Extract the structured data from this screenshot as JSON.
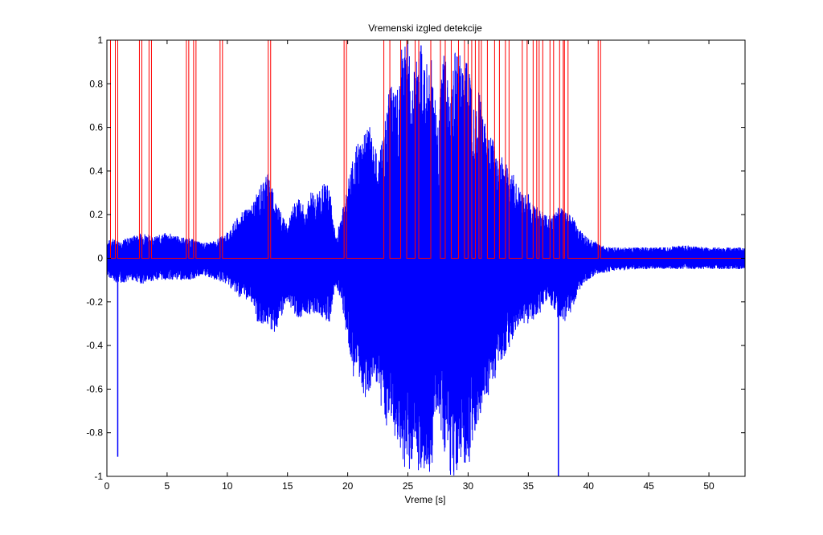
{
  "chart_data": {
    "type": "line",
    "title": "Vremenski izgled detekcije",
    "xlabel": "Vreme [s]",
    "ylabel": "",
    "xlim": [
      0,
      53
    ],
    "ylim": [
      -1,
      1
    ],
    "grid": false,
    "x_ticks": [
      0,
      5,
      10,
      15,
      20,
      25,
      30,
      35,
      40,
      45,
      50
    ],
    "x_tick_labels": [
      "0",
      "5",
      "10",
      "15",
      "20",
      "25",
      "30",
      "35",
      "40",
      "45",
      "50"
    ],
    "y_ticks": [
      -1,
      -0.8,
      -0.6,
      -0.4,
      -0.2,
      0,
      0.2,
      0.4,
      0.6,
      0.8,
      1
    ],
    "y_tick_labels": [
      "-1",
      "-0.8",
      "-0.6",
      "-0.4",
      "-0.2",
      "0",
      "0.2",
      "0.4",
      "0.6",
      "0.8",
      "1"
    ],
    "series": [
      {
        "color": "#0000ff",
        "envelope": {
          "x": [
            0,
            0.5,
            1,
            2,
            3,
            4,
            5,
            6,
            7,
            8,
            9,
            10,
            11,
            12,
            12.5,
            13,
            13.5,
            14,
            14.5,
            15,
            15.5,
            16,
            16.5,
            17,
            17.5,
            18,
            18.5,
            19,
            19.5,
            20,
            20.5,
            21,
            21.5,
            22,
            22.5,
            23,
            23.5,
            24,
            24.5,
            25,
            25.5,
            26,
            26.5,
            27,
            27.5,
            28,
            28.5,
            29,
            29.5,
            30,
            30.5,
            31,
            31.5,
            32,
            32.5,
            33,
            33.5,
            34,
            34.5,
            35,
            35.5,
            36,
            36.5,
            37,
            37.5,
            38,
            38.5,
            39,
            39.5,
            40,
            40.5,
            41,
            42,
            44,
            46,
            48,
            50,
            52,
            53
          ],
          "upper": [
            0.08,
            0.09,
            0.08,
            0.1,
            0.12,
            0.1,
            0.12,
            0.1,
            0.09,
            0.07,
            0.08,
            0.12,
            0.2,
            0.25,
            0.3,
            0.38,
            0.4,
            0.28,
            0.2,
            0.15,
            0.25,
            0.28,
            0.22,
            0.32,
            0.3,
            0.35,
            0.33,
            0.1,
            0.2,
            0.35,
            0.5,
            0.55,
            0.62,
            0.6,
            0.45,
            0.6,
            0.8,
            0.75,
            1.0,
            1.0,
            0.85,
            1.0,
            0.9,
            0.95,
            0.6,
            1.0,
            0.7,
            1.0,
            0.9,
            0.95,
            0.75,
            0.8,
            0.6,
            0.55,
            0.5,
            0.45,
            0.42,
            0.35,
            0.3,
            0.3,
            0.25,
            0.22,
            0.2,
            0.2,
            0.24,
            0.22,
            0.22,
            0.15,
            0.12,
            0.09,
            0.08,
            0.06,
            0.05,
            0.05,
            0.05,
            0.06,
            0.05,
            0.05,
            0.05
          ],
          "lower": [
            -0.08,
            -0.1,
            -0.12,
            -0.1,
            -0.12,
            -0.1,
            -0.1,
            -0.1,
            -0.1,
            -0.08,
            -0.1,
            -0.12,
            -0.18,
            -0.2,
            -0.3,
            -0.3,
            -0.32,
            -0.35,
            -0.28,
            -0.2,
            -0.25,
            -0.28,
            -0.25,
            -0.26,
            -0.25,
            -0.28,
            -0.3,
            -0.12,
            -0.2,
            -0.4,
            -0.55,
            -0.6,
            -0.65,
            -0.58,
            -0.6,
            -0.75,
            -0.8,
            -0.85,
            -0.95,
            -1.0,
            -0.9,
            -1.0,
            -0.95,
            -1.0,
            -0.7,
            -0.9,
            -1.0,
            -1.0,
            -0.9,
            -1.0,
            -0.8,
            -0.75,
            -0.65,
            -0.6,
            -0.5,
            -0.45,
            -0.4,
            -0.35,
            -0.3,
            -0.3,
            -0.28,
            -0.25,
            -0.2,
            -0.22,
            -0.28,
            -0.3,
            -0.25,
            -0.18,
            -0.12,
            -0.1,
            -0.08,
            -0.07,
            -0.06,
            -0.05,
            -0.05,
            -0.05,
            -0.05,
            -0.05,
            -0.05
          ]
        },
        "spikes": [
          {
            "x": 0.9,
            "y": -0.91
          },
          {
            "x": 37.5,
            "y": -1.0
          }
        ]
      },
      {
        "color": "#ff0000",
        "type": "step",
        "base": 0,
        "high": 1,
        "pulses": [
          [
            0.0,
            0.3
          ],
          [
            0.7,
            0.9
          ],
          [
            2.7,
            2.9
          ],
          [
            3.5,
            3.7
          ],
          [
            6.6,
            6.8
          ],
          [
            7.2,
            7.4
          ],
          [
            9.4,
            9.6
          ],
          [
            13.4,
            13.6
          ],
          [
            19.7,
            19.9
          ],
          [
            23.0,
            23.5
          ],
          [
            24.4,
            24.9
          ],
          [
            25.6,
            25.9
          ],
          [
            26.9,
            27.7
          ],
          [
            28.1,
            28.6
          ],
          [
            29.2,
            29.7
          ],
          [
            30.0,
            30.3
          ],
          [
            30.6,
            30.9
          ],
          [
            31.1,
            31.6
          ],
          [
            32.2,
            32.6
          ],
          [
            33.1,
            33.4
          ],
          [
            34.5,
            34.9
          ],
          [
            35.4,
            35.7
          ],
          [
            35.9,
            36.2
          ],
          [
            36.8,
            37.1
          ],
          [
            37.6,
            37.9
          ],
          [
            38.0,
            38.3
          ],
          [
            40.8,
            41.0
          ]
        ]
      }
    ]
  }
}
